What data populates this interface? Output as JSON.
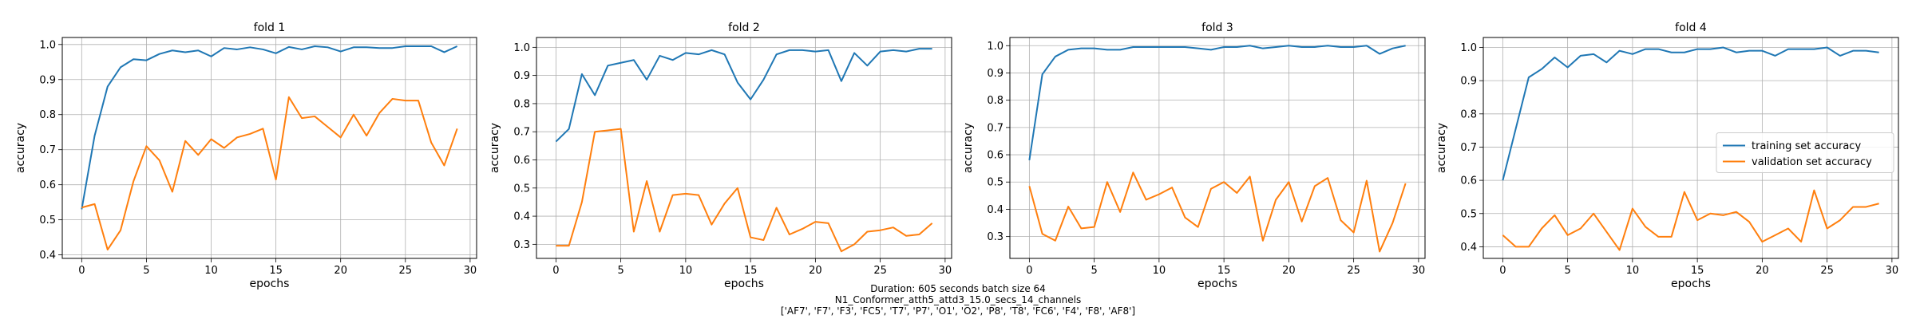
{
  "figure": {
    "caption_lines": [
      "Duration: 605 seconds batch size 64",
      "N1_Conformer_atth5_attd3_15.0_secs_14_channels",
      "['AF7', 'F7', 'F3', 'FC5', 'T7', 'P7', 'O1', 'O2', 'P8', 'T8', 'FC6', 'F4', 'F8', 'AF8']"
    ]
  },
  "colors": {
    "training": "#1f77b4",
    "validation": "#ff7f0e"
  },
  "chart_data": [
    {
      "type": "line",
      "title": "fold 1",
      "xlabel": "epochs",
      "ylabel": "accuracy",
      "xlim": [
        -1.5,
        30.5
      ],
      "ylim": [
        0.39,
        1.02
      ],
      "xticks": [
        0,
        5,
        10,
        15,
        20,
        25,
        30
      ],
      "yticks": [
        0.4,
        0.5,
        0.6,
        0.7,
        0.8,
        0.9,
        1.0
      ],
      "ytick_labels": [
        "0.4",
        "0.5",
        "0.6",
        "0.7",
        "0.8",
        "0.9",
        "1.0"
      ],
      "grid": true,
      "legend": null,
      "x": [
        0,
        1,
        2,
        3,
        4,
        5,
        6,
        7,
        8,
        9,
        10,
        11,
        12,
        13,
        14,
        15,
        16,
        17,
        18,
        19,
        20,
        21,
        22,
        23,
        24,
        25,
        26,
        27,
        28,
        29
      ],
      "series": [
        {
          "name": "training set accuracy",
          "values": [
            0.53,
            0.74,
            0.88,
            0.935,
            0.958,
            0.955,
            0.973,
            0.983,
            0.978,
            0.983,
            0.966,
            0.99,
            0.986,
            0.992,
            0.986,
            0.975,
            0.993,
            0.986,
            0.995,
            0.992,
            0.98,
            0.992,
            0.992,
            0.99,
            0.99,
            0.995,
            0.995,
            0.995,
            0.978,
            0.995
          ]
        },
        {
          "name": "validation set accuracy",
          "values": [
            0.535,
            0.545,
            0.415,
            0.47,
            0.61,
            0.71,
            0.67,
            0.58,
            0.725,
            0.685,
            0.73,
            0.705,
            0.735,
            0.745,
            0.76,
            0.615,
            0.85,
            0.79,
            0.795,
            0.765,
            0.735,
            0.8,
            0.74,
            0.805,
            0.845,
            0.84,
            0.84,
            0.72,
            0.655,
            0.76
          ]
        }
      ]
    },
    {
      "type": "line",
      "title": "fold 2",
      "xlabel": "epochs",
      "ylabel": "accuracy",
      "xlim": [
        -1.5,
        30.5
      ],
      "ylim": [
        0.25,
        1.035
      ],
      "xticks": [
        0,
        5,
        10,
        15,
        20,
        25,
        30
      ],
      "yticks": [
        0.3,
        0.4,
        0.5,
        0.6,
        0.7,
        0.8,
        0.9,
        1.0
      ],
      "ytick_labels": [
        "0.3",
        "0.4",
        "0.5",
        "0.6",
        "0.7",
        "0.8",
        "0.9",
        "1.0"
      ],
      "grid": true,
      "legend": null,
      "x": [
        0,
        1,
        2,
        3,
        4,
        5,
        6,
        7,
        8,
        9,
        10,
        11,
        12,
        13,
        14,
        15,
        16,
        17,
        18,
        19,
        20,
        21,
        22,
        23,
        24,
        25,
        26,
        27,
        28,
        29
      ],
      "series": [
        {
          "name": "training set accuracy",
          "values": [
            0.665,
            0.71,
            0.905,
            0.83,
            0.935,
            0.945,
            0.955,
            0.885,
            0.97,
            0.955,
            0.98,
            0.975,
            0.99,
            0.975,
            0.875,
            0.815,
            0.885,
            0.975,
            0.99,
            0.99,
            0.985,
            0.99,
            0.88,
            0.98,
            0.935,
            0.985,
            0.99,
            0.985,
            0.995,
            0.995
          ]
        },
        {
          "name": "validation set accuracy",
          "values": [
            0.295,
            0.295,
            0.45,
            0.7,
            0.705,
            0.71,
            0.345,
            0.525,
            0.345,
            0.475,
            0.48,
            0.475,
            0.37,
            0.445,
            0.5,
            0.325,
            0.315,
            0.43,
            0.335,
            0.355,
            0.38,
            0.375,
            0.275,
            0.3,
            0.345,
            0.35,
            0.36,
            0.33,
            0.335,
            0.375
          ]
        }
      ]
    },
    {
      "type": "line",
      "title": "fold 3",
      "xlabel": "epochs",
      "ylabel": "accuracy",
      "xlim": [
        -1.5,
        30.5
      ],
      "ylim": [
        0.22,
        1.03
      ],
      "xticks": [
        0,
        5,
        10,
        15,
        20,
        25,
        30
      ],
      "yticks": [
        0.3,
        0.4,
        0.5,
        0.6,
        0.7,
        0.8,
        0.9,
        1.0
      ],
      "ytick_labels": [
        "0.3",
        "0.4",
        "0.5",
        "0.6",
        "0.7",
        "0.8",
        "0.9",
        "1.0"
      ],
      "grid": true,
      "legend": null,
      "x": [
        0,
        1,
        2,
        3,
        4,
        5,
        6,
        7,
        8,
        9,
        10,
        11,
        12,
        13,
        14,
        15,
        16,
        17,
        18,
        19,
        20,
        21,
        22,
        23,
        24,
        25,
        26,
        27,
        28,
        29
      ],
      "series": [
        {
          "name": "training set accuracy",
          "values": [
            0.58,
            0.895,
            0.96,
            0.985,
            0.99,
            0.99,
            0.985,
            0.985,
            0.995,
            0.995,
            0.995,
            0.995,
            0.995,
            0.99,
            0.985,
            0.995,
            0.995,
            1.0,
            0.99,
            0.995,
            1.0,
            0.995,
            0.995,
            1.0,
            0.995,
            0.995,
            1.0,
            0.97,
            0.99,
            1.0
          ]
        },
        {
          "name": "validation set accuracy",
          "values": [
            0.485,
            0.31,
            0.285,
            0.41,
            0.33,
            0.335,
            0.5,
            0.39,
            0.535,
            0.435,
            0.455,
            0.48,
            0.37,
            0.335,
            0.475,
            0.5,
            0.46,
            0.52,
            0.285,
            0.435,
            0.5,
            0.355,
            0.485,
            0.515,
            0.36,
            0.315,
            0.505,
            0.245,
            0.35,
            0.495
          ]
        }
      ]
    },
    {
      "type": "line",
      "title": "fold 4",
      "xlabel": "epochs",
      "ylabel": "accuracy",
      "xlim": [
        -1.5,
        30.5
      ],
      "ylim": [
        0.365,
        1.03
      ],
      "xticks": [
        0,
        5,
        10,
        15,
        20,
        25,
        30
      ],
      "yticks": [
        0.4,
        0.5,
        0.6,
        0.7,
        0.8,
        0.9,
        1.0
      ],
      "ytick_labels": [
        "0.4",
        "0.5",
        "0.6",
        "0.7",
        "0.8",
        "0.9",
        "1.0"
      ],
      "grid": true,
      "legend": "center-right",
      "x": [
        0,
        1,
        2,
        3,
        4,
        5,
        6,
        7,
        8,
        9,
        10,
        11,
        12,
        13,
        14,
        15,
        16,
        17,
        18,
        19,
        20,
        21,
        22,
        23,
        24,
        25,
        26,
        27,
        28,
        29
      ],
      "series": [
        {
          "name": "training set accuracy",
          "values": [
            0.6,
            0.755,
            0.91,
            0.935,
            0.97,
            0.94,
            0.975,
            0.98,
            0.955,
            0.99,
            0.98,
            0.995,
            0.995,
            0.985,
            0.985,
            0.995,
            0.995,
            1.0,
            0.985,
            0.99,
            0.99,
            0.975,
            0.995,
            0.995,
            0.995,
            1.0,
            0.975,
            0.99,
            0.99,
            0.985
          ]
        },
        {
          "name": "validation set accuracy",
          "values": [
            0.435,
            0.4,
            0.4,
            0.455,
            0.495,
            0.435,
            0.455,
            0.5,
            0.445,
            0.39,
            0.515,
            0.46,
            0.43,
            0.43,
            0.565,
            0.48,
            0.5,
            0.495,
            0.505,
            0.475,
            0.415,
            0.435,
            0.455,
            0.415,
            0.57,
            0.455,
            0.48,
            0.52,
            0.52,
            0.53
          ]
        }
      ]
    }
  ]
}
